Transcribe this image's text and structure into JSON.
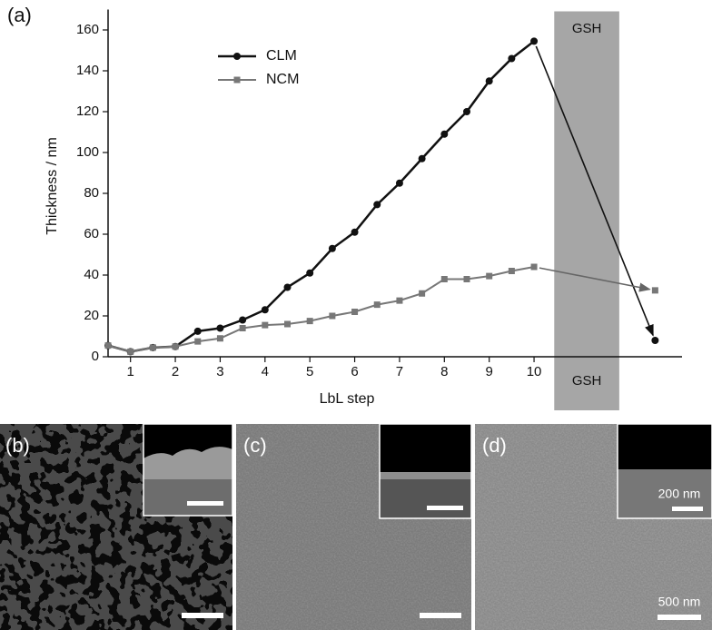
{
  "chart_data": {
    "type": "line",
    "panel_label": "(a)",
    "xlabel": "LbL step",
    "ylabel": "Thickness / nm",
    "x": [
      0.5,
      1,
      1.5,
      2,
      2.5,
      3,
      3.5,
      4,
      4.5,
      5,
      5.5,
      6,
      6.5,
      7,
      7.5,
      8,
      8.5,
      9,
      9.5,
      10
    ],
    "xlim": [
      0.5,
      13.3
    ],
    "xticks": [
      1,
      2,
      3,
      4,
      5,
      6,
      7,
      8,
      9,
      10
    ],
    "ylim": [
      0,
      170
    ],
    "yticks": [
      0,
      20,
      40,
      60,
      80,
      100,
      120,
      140,
      160
    ],
    "series": [
      {
        "name": "CLM",
        "color": "#111111",
        "marker": "circle",
        "values": [
          5.5,
          2.5,
          4.5,
          5,
          12.5,
          14,
          18,
          23,
          34,
          41,
          53,
          61,
          74.5,
          85,
          97,
          109,
          120,
          135,
          146,
          154.5
        ],
        "after_gsh": 8
      },
      {
        "name": "NCM",
        "color": "#777777",
        "marker": "square",
        "values": [
          5.5,
          2.5,
          4.5,
          5,
          7.5,
          9,
          14,
          15.5,
          16,
          17.5,
          20,
          22,
          25.5,
          27.5,
          31,
          38,
          38,
          39.5,
          42,
          44
        ],
        "after_gsh": 32.5
      }
    ],
    "after_gsh_x": 12.7,
    "band": {
      "label": "GSH",
      "x": [
        10.45,
        11.9
      ],
      "color": "#a6a6a6"
    }
  },
  "panels": [
    {
      "label": "(b)"
    },
    {
      "label": "(c)"
    },
    {
      "label": "(d)",
      "inset_scale": "200 nm",
      "scale": "500 nm"
    }
  ]
}
